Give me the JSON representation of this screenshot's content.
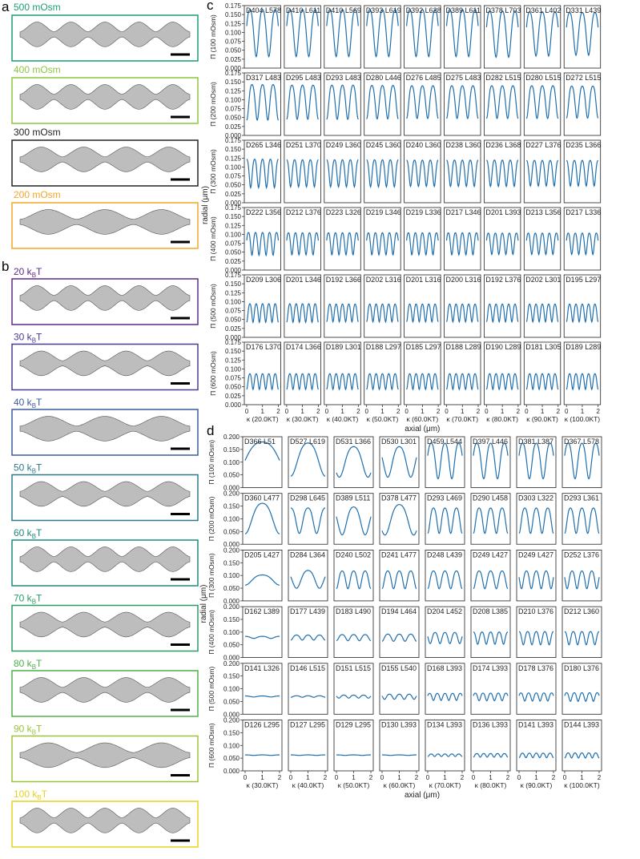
{
  "panel_labels": {
    "a": "a",
    "b": "b",
    "c": "c",
    "d": "d"
  },
  "colors": {
    "curve": "#1f6fae",
    "tube_fill": "#bdbdbd",
    "tube_stroke": "#555555",
    "scale_bar": "#000000"
  },
  "panel_a": {
    "rows": [
      {
        "label": "500 mOsm",
        "color": "#1a9e6e"
      },
      {
        "label": "400 mOsm",
        "color": "#8cc63f"
      },
      {
        "label": "300 mOsm",
        "color": "#222222"
      },
      {
        "label": "200 mOsm",
        "color": "#f5a623"
      }
    ]
  },
  "panel_b": {
    "rows": [
      {
        "label": "20 k",
        "sub": "B",
        "tail": "T",
        "color": "#5b2a86"
      },
      {
        "label": "30 k",
        "sub": "B",
        "tail": "T",
        "color": "#4b3a8f"
      },
      {
        "label": "40 k",
        "sub": "B",
        "tail": "T",
        "color": "#3a5ba0"
      },
      {
        "label": "50 k",
        "sub": "B",
        "tail": "T",
        "color": "#2a7a8c"
      },
      {
        "label": "60 k",
        "sub": "B",
        "tail": "T",
        "color": "#1e8a7a"
      },
      {
        "label": "70 k",
        "sub": "B",
        "tail": "T",
        "color": "#2a9a66"
      },
      {
        "label": "80 k",
        "sub": "B",
        "tail": "T",
        "color": "#4fb04a"
      },
      {
        "label": "90 k",
        "sub": "B",
        "tail": "T",
        "color": "#9bc23a"
      },
      {
        "label": "100 k",
        "sub": "B",
        "tail": "T",
        "color": "#e8d21a"
      }
    ]
  },
  "chart_data": [
    {
      "id": "c",
      "type": "line",
      "ylabel": "radial (μm)",
      "xlabel": "axial (μm)",
      "row_labels": [
        "Π (100 mOsm)",
        "Π (200 mOsm)",
        "Π (300 mOsm)",
        "Π (400 mOsm)",
        "Π (500 mOsm)",
        "Π (600 mOsm)"
      ],
      "col_labels": [
        "κ (20.0KT)",
        "κ (30.0KT)",
        "κ (40.0KT)",
        "κ (50.0KT)",
        "κ (60.0KT)",
        "κ (70.0KT)",
        "κ (80.0KT)",
        "κ (90.0KT)",
        "κ (100.0KT)"
      ],
      "ylim": [
        0,
        0.175
      ],
      "yticks": [
        "0.000",
        "0.025",
        "0.050",
        "0.075",
        "0.100",
        "0.125",
        "0.150",
        "0.175"
      ],
      "xlim": [
        0,
        2
      ],
      "xticks": [
        "0",
        "1",
        "2"
      ],
      "cells": [
        [
          {
            "label": "D404 L578",
            "n": 2.5,
            "amp": 0.066,
            "base": 0.108
          },
          {
            "label": "D410 L611",
            "n": 2.5,
            "amp": 0.066,
            "base": 0.108
          },
          {
            "label": "D410 L569",
            "n": 2.5,
            "amp": 0.066,
            "base": 0.108
          },
          {
            "label": "D393 L619",
            "n": 2.5,
            "amp": 0.066,
            "base": 0.108
          },
          {
            "label": "D392 L628",
            "n": 2.5,
            "amp": 0.066,
            "base": 0.108
          },
          {
            "label": "D389 L611",
            "n": 2.5,
            "amp": 0.066,
            "base": 0.108
          },
          {
            "label": "D378 L703",
            "n": 2.5,
            "amp": 0.065,
            "base": 0.105
          },
          {
            "label": "D361 L402",
            "n": 2.5,
            "amp": 0.062,
            "base": 0.105
          },
          {
            "label": "D331 L439",
            "n": 2.5,
            "amp": 0.06,
            "base": 0.105
          }
        ],
        [
          {
            "label": "D317 L483",
            "n": 3,
            "amp": 0.05,
            "base": 0.1
          },
          {
            "label": "D295 L483",
            "n": 3,
            "amp": 0.048,
            "base": 0.1
          },
          {
            "label": "D293 L483",
            "n": 3,
            "amp": 0.048,
            "base": 0.1
          },
          {
            "label": "D280 L446",
            "n": 3,
            "amp": 0.047,
            "base": 0.1
          },
          {
            "label": "D276 L485",
            "n": 3,
            "amp": 0.046,
            "base": 0.1
          },
          {
            "label": "D275 L483",
            "n": 3,
            "amp": 0.046,
            "base": 0.1
          },
          {
            "label": "D282 L515",
            "n": 3,
            "amp": 0.046,
            "base": 0.1
          },
          {
            "label": "D280 L515",
            "n": 3,
            "amp": 0.046,
            "base": 0.1
          },
          {
            "label": "D272 L515",
            "n": 3,
            "amp": 0.045,
            "base": 0.1
          }
        ],
        [
          {
            "label": "D265 L346",
            "n": 4,
            "amp": 0.04,
            "base": 0.088
          },
          {
            "label": "D251 L370",
            "n": 4,
            "amp": 0.038,
            "base": 0.088
          },
          {
            "label": "D249 L360",
            "n": 4,
            "amp": 0.038,
            "base": 0.088
          },
          {
            "label": "D245 L360",
            "n": 4,
            "amp": 0.038,
            "base": 0.088
          },
          {
            "label": "D240 L360",
            "n": 4,
            "amp": 0.037,
            "base": 0.088
          },
          {
            "label": "D238 L360",
            "n": 4,
            "amp": 0.037,
            "base": 0.088
          },
          {
            "label": "D236 L368",
            "n": 4,
            "amp": 0.037,
            "base": 0.088
          },
          {
            "label": "D227 L376",
            "n": 4,
            "amp": 0.036,
            "base": 0.088
          },
          {
            "label": "D235 L366",
            "n": 4,
            "amp": 0.036,
            "base": 0.088
          }
        ],
        [
          {
            "label": "D222 L356",
            "n": 4.5,
            "amp": 0.032,
            "base": 0.078
          },
          {
            "label": "D212 L376",
            "n": 4.5,
            "amp": 0.031,
            "base": 0.078
          },
          {
            "label": "D223 L326",
            "n": 4.5,
            "amp": 0.031,
            "base": 0.078
          },
          {
            "label": "D219 L346",
            "n": 4.5,
            "amp": 0.031,
            "base": 0.078
          },
          {
            "label": "D219 L336",
            "n": 4.5,
            "amp": 0.031,
            "base": 0.078
          },
          {
            "label": "D217 L346",
            "n": 4.5,
            "amp": 0.031,
            "base": 0.078
          },
          {
            "label": "D201 L393",
            "n": 4.5,
            "amp": 0.03,
            "base": 0.078
          },
          {
            "label": "D213 L356",
            "n": 4.5,
            "amp": 0.03,
            "base": 0.078
          },
          {
            "label": "D217 L336",
            "n": 4.5,
            "amp": 0.03,
            "base": 0.078
          }
        ],
        [
          {
            "label": "D209 L306",
            "n": 5,
            "amp": 0.026,
            "base": 0.072
          },
          {
            "label": "D201 L346",
            "n": 5,
            "amp": 0.026,
            "base": 0.072
          },
          {
            "label": "D192 L366",
            "n": 5,
            "amp": 0.025,
            "base": 0.072
          },
          {
            "label": "D202 L316",
            "n": 5,
            "amp": 0.025,
            "base": 0.072
          },
          {
            "label": "D201 L316",
            "n": 5,
            "amp": 0.025,
            "base": 0.072
          },
          {
            "label": "D200 L316",
            "n": 5,
            "amp": 0.025,
            "base": 0.072
          },
          {
            "label": "D192 L376",
            "n": 5,
            "amp": 0.025,
            "base": 0.072
          },
          {
            "label": "D202 L301",
            "n": 5,
            "amp": 0.025,
            "base": 0.072
          },
          {
            "label": "D195 L297",
            "n": 5,
            "amp": 0.025,
            "base": 0.072
          }
        ],
        [
          {
            "label": "D176 L370",
            "n": 5,
            "amp": 0.022,
            "base": 0.068
          },
          {
            "label": "D174 L366",
            "n": 5,
            "amp": 0.022,
            "base": 0.068
          },
          {
            "label": "D189 L301",
            "n": 5,
            "amp": 0.022,
            "base": 0.068
          },
          {
            "label": "D188 L297",
            "n": 5,
            "amp": 0.022,
            "base": 0.068
          },
          {
            "label": "D185 L297",
            "n": 5,
            "amp": 0.022,
            "base": 0.068
          },
          {
            "label": "D188 L289",
            "n": 5,
            "amp": 0.022,
            "base": 0.068
          },
          {
            "label": "D190 L289",
            "n": 5,
            "amp": 0.022,
            "base": 0.068
          },
          {
            "label": "D181 L305",
            "n": 5,
            "amp": 0.022,
            "base": 0.068
          },
          {
            "label": "D189 L289",
            "n": 5,
            "amp": 0.022,
            "base": 0.068
          }
        ]
      ]
    },
    {
      "id": "d",
      "type": "line",
      "ylabel": "radial (μm)",
      "xlabel": "axial (μm)",
      "row_labels": [
        "Π (100 mOsm)",
        "Π (200 mOsm)",
        "Π (300 mOsm)",
        "Π (400 mOsm)",
        "Π (500 mOsm)",
        "Π (600 mOsm)"
      ],
      "col_labels": [
        "κ (30.0KT)",
        "κ (40.0KT)",
        "κ (50.0KT)",
        "κ (60.0KT)",
        "κ (70.0KT)",
        "κ (80.0KT)",
        "κ (90.0KT)",
        "κ (100.0KT)"
      ],
      "ylim": [
        0,
        0.2
      ],
      "yticks": [
        "0.000",
        "0.050",
        "0.100",
        "0.150",
        "0.200"
      ],
      "xlim": [
        0,
        2
      ],
      "xticks": [
        "0",
        "1",
        "2"
      ],
      "cells": [
        [
          {
            "label": "D366 L51",
            "n": 0.6,
            "amp": 0.07,
            "base": 0.12
          },
          {
            "label": "D527 L619",
            "n": 1,
            "amp": 0.065,
            "base": 0.12
          },
          {
            "label": "D531 L366",
            "n": 1.2,
            "amp": 0.06,
            "base": 0.11
          },
          {
            "label": "D530 L301",
            "n": 1.5,
            "amp": 0.06,
            "base": 0.11
          },
          {
            "label": "D459 L544",
            "n": 2.5,
            "amp": 0.07,
            "base": 0.115
          },
          {
            "label": "D397 L446",
            "n": 2.5,
            "amp": 0.07,
            "base": 0.115
          },
          {
            "label": "D381 L387",
            "n": 2.5,
            "amp": 0.07,
            "base": 0.115
          },
          {
            "label": "D367 L578",
            "n": 2.5,
            "amp": 0.07,
            "base": 0.115
          }
        ],
        [
          {
            "label": "D360 L477",
            "n": 1,
            "amp": 0.06,
            "base": 0.11
          },
          {
            "label": "D298 L645",
            "n": 2,
            "amp": 0.05,
            "base": 0.1
          },
          {
            "label": "D389 L511",
            "n": 1.5,
            "amp": 0.055,
            "base": 0.1
          },
          {
            "label": "D378 L477",
            "n": 1.2,
            "amp": 0.06,
            "base": 0.105
          },
          {
            "label": "D293 L469",
            "n": 3,
            "amp": 0.05,
            "base": 0.1
          },
          {
            "label": "D290 L458",
            "n": 3,
            "amp": 0.05,
            "base": 0.1
          },
          {
            "label": "D303 L322",
            "n": 3,
            "amp": 0.05,
            "base": 0.1
          },
          {
            "label": "D293 L361",
            "n": 3,
            "amp": 0.05,
            "base": 0.1
          }
        ],
        [
          {
            "label": "D205 L427",
            "n": 1,
            "amp": 0.02,
            "base": 0.085
          },
          {
            "label": "D284 L364",
            "n": 1.5,
            "amp": 0.035,
            "base": 0.09
          },
          {
            "label": "D240 L502",
            "n": 3,
            "amp": 0.035,
            "base": 0.088
          },
          {
            "label": "D241 L477",
            "n": 3,
            "amp": 0.035,
            "base": 0.088
          },
          {
            "label": "D248 L439",
            "n": 3,
            "amp": 0.035,
            "base": 0.088
          },
          {
            "label": "D249 L427",
            "n": 3,
            "amp": 0.035,
            "base": 0.088
          },
          {
            "label": "D249 L427",
            "n": 3.5,
            "amp": 0.035,
            "base": 0.088
          },
          {
            "label": "D252 L376",
            "n": 3.5,
            "amp": 0.035,
            "base": 0.088
          }
        ],
        [
          {
            "label": "D162 L389",
            "n": 2,
            "amp": 0.004,
            "base": 0.08
          },
          {
            "label": "D177 L439",
            "n": 3,
            "amp": 0.01,
            "base": 0.08
          },
          {
            "label": "D183 L490",
            "n": 3,
            "amp": 0.012,
            "base": 0.08
          },
          {
            "label": "D194 L464",
            "n": 3,
            "amp": 0.014,
            "base": 0.08
          },
          {
            "label": "D204 L452",
            "n": 3.5,
            "amp": 0.022,
            "base": 0.08
          },
          {
            "label": "D208 L385",
            "n": 4,
            "amp": 0.024,
            "base": 0.08
          },
          {
            "label": "D210 L376",
            "n": 4,
            "amp": 0.026,
            "base": 0.08
          },
          {
            "label": "D212 L360",
            "n": 4,
            "amp": 0.026,
            "base": 0.08
          }
        ],
        [
          {
            "label": "D141 L326",
            "n": 2,
            "amp": 0.002,
            "base": 0.07
          },
          {
            "label": "D146 L515",
            "n": 3,
            "amp": 0.003,
            "base": 0.07
          },
          {
            "label": "D151 L515",
            "n": 3.5,
            "amp": 0.006,
            "base": 0.07
          },
          {
            "label": "D155 L540",
            "n": 3.5,
            "amp": 0.01,
            "base": 0.07
          },
          {
            "label": "D168 L393",
            "n": 4.5,
            "amp": 0.014,
            "base": 0.07
          },
          {
            "label": "D174 L393",
            "n": 4.5,
            "amp": 0.015,
            "base": 0.07
          },
          {
            "label": "D178 L376",
            "n": 4.5,
            "amp": 0.016,
            "base": 0.07
          },
          {
            "label": "D180 L376",
            "n": 4.5,
            "amp": 0.017,
            "base": 0.07
          }
        ],
        [
          {
            "label": "D126 L295",
            "n": 2,
            "amp": 0.001,
            "base": 0.062
          },
          {
            "label": "D127 L295",
            "n": 2,
            "amp": 0.001,
            "base": 0.062
          },
          {
            "label": "D129 L295",
            "n": 2,
            "amp": 0.001,
            "base": 0.062
          },
          {
            "label": "D130 L393",
            "n": 2,
            "amp": 0.001,
            "base": 0.062
          },
          {
            "label": "D134 L393",
            "n": 5,
            "amp": 0.005,
            "base": 0.062
          },
          {
            "label": "D136 L393",
            "n": 5,
            "amp": 0.007,
            "base": 0.062
          },
          {
            "label": "D141 L393",
            "n": 5,
            "amp": 0.009,
            "base": 0.062
          },
          {
            "label": "D144 L393",
            "n": 5,
            "amp": 0.01,
            "base": 0.062
          }
        ]
      ]
    }
  ]
}
